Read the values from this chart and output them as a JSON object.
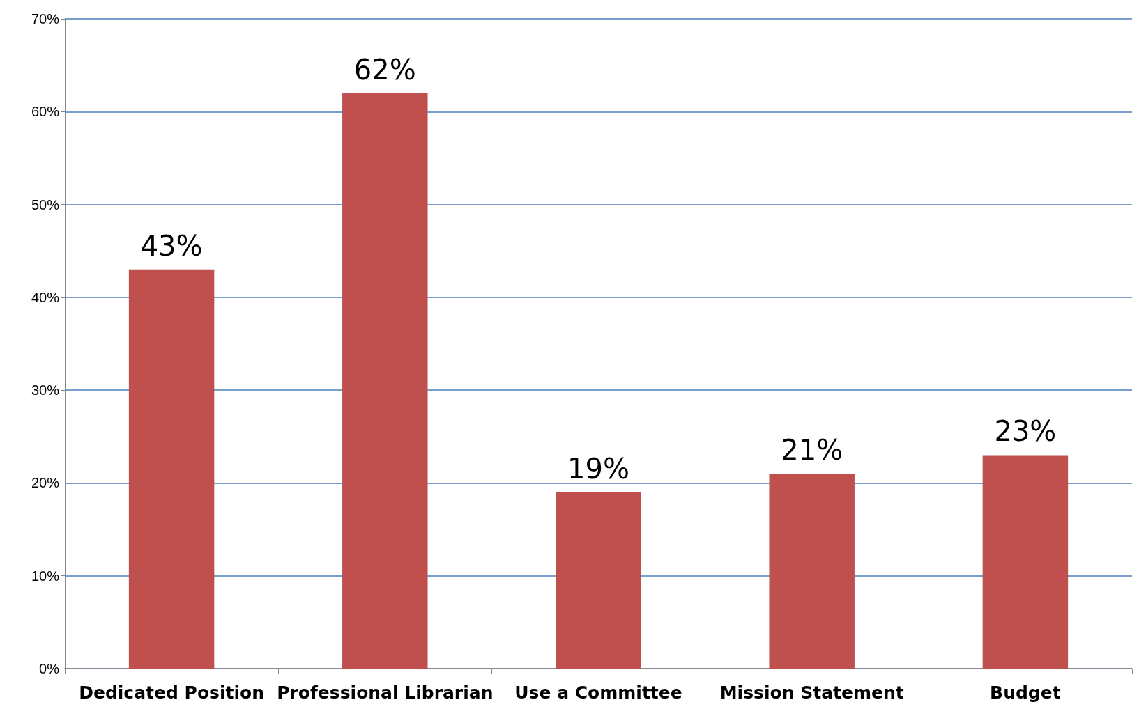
{
  "chart_data": {
    "type": "bar",
    "categories": [
      "Dedicated Position",
      "Professional Librarian",
      "Use a Committee",
      "Mission Statement",
      "Budget"
    ],
    "values": [
      43,
      62,
      19,
      21,
      23
    ],
    "value_labels": [
      "43%",
      "62%",
      "19%",
      "21%",
      "23%"
    ],
    "color": "#c0504d",
    "ylim": [
      0,
      70
    ],
    "yticks": [
      {
        "value": 0,
        "label": "0%"
      },
      {
        "value": 10,
        "label": "10%"
      },
      {
        "value": 20,
        "label": "20%"
      },
      {
        "value": 30,
        "label": "30%"
      },
      {
        "value": 40,
        "label": "40%"
      },
      {
        "value": 50,
        "label": "50%"
      },
      {
        "value": 60,
        "label": "60%"
      },
      {
        "value": 70,
        "label": "70%"
      }
    ],
    "grid": "y"
  }
}
